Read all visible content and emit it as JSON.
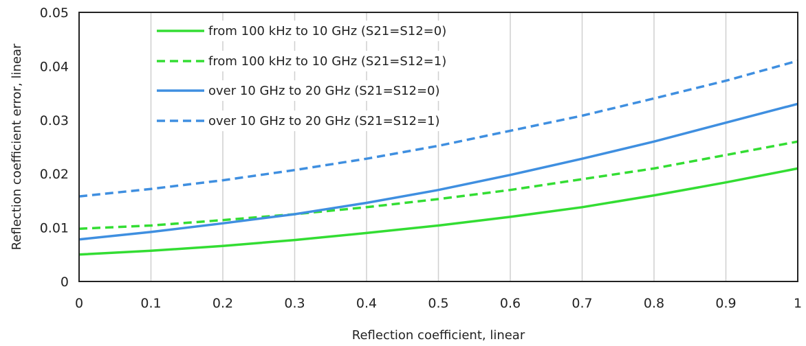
{
  "chart_data": {
    "type": "line",
    "xlabel": "Reflection coefficient, linear",
    "ylabel": "Reflection coefficient error, linear",
    "xlim": [
      0,
      1
    ],
    "ylim": [
      0,
      0.05
    ],
    "xticks": [
      0,
      0.1,
      0.2,
      0.3,
      0.4,
      0.5,
      0.6,
      0.7,
      0.8,
      0.9,
      1
    ],
    "yticks": [
      0,
      0.01,
      0.02,
      0.03,
      0.04,
      0.05
    ],
    "xtick_labels": [
      "0",
      "0.1",
      "0.2",
      "0.3",
      "0.4",
      "0.5",
      "0.6",
      "0.7",
      "0.8",
      "0.9",
      "1"
    ],
    "ytick_labels": [
      "0",
      "0.01",
      "0.02",
      "0.03",
      "0.04",
      "0.05"
    ],
    "grid": "vertical",
    "legend_position": "top-left",
    "x": [
      0,
      0.1,
      0.2,
      0.3,
      0.4,
      0.5,
      0.6,
      0.7,
      0.8,
      0.9,
      1
    ],
    "series": [
      {
        "name": "from 100 kHz to 10 GHz (S21=S12=0)",
        "color": "#33dd33",
        "dashed": false,
        "values": [
          0.005,
          0.0057,
          0.0066,
          0.0077,
          0.009,
          0.0104,
          0.012,
          0.0138,
          0.016,
          0.0184,
          0.021
        ]
      },
      {
        "name": "from 100 kHz to 10 GHz (S21=S12=1)",
        "color": "#33dd33",
        "dashed": true,
        "values": [
          0.0098,
          0.0104,
          0.0114,
          0.0125,
          0.0138,
          0.0153,
          0.017,
          0.019,
          0.021,
          0.0235,
          0.026
        ]
      },
      {
        "name": "over 10 GHz to 20 GHz (S21=S12=0)",
        "color": "#3f8fe0",
        "dashed": false,
        "values": [
          0.0078,
          0.0092,
          0.0108,
          0.0125,
          0.0146,
          0.017,
          0.0198,
          0.0228,
          0.026,
          0.0295,
          0.033
        ]
      },
      {
        "name": "over 10 GHz to 20 GHz (S21=S12=1)",
        "color": "#3f8fe0",
        "dashed": true,
        "values": [
          0.0158,
          0.0172,
          0.0188,
          0.0207,
          0.0228,
          0.0252,
          0.028,
          0.0308,
          0.034,
          0.0373,
          0.041
        ]
      }
    ]
  }
}
